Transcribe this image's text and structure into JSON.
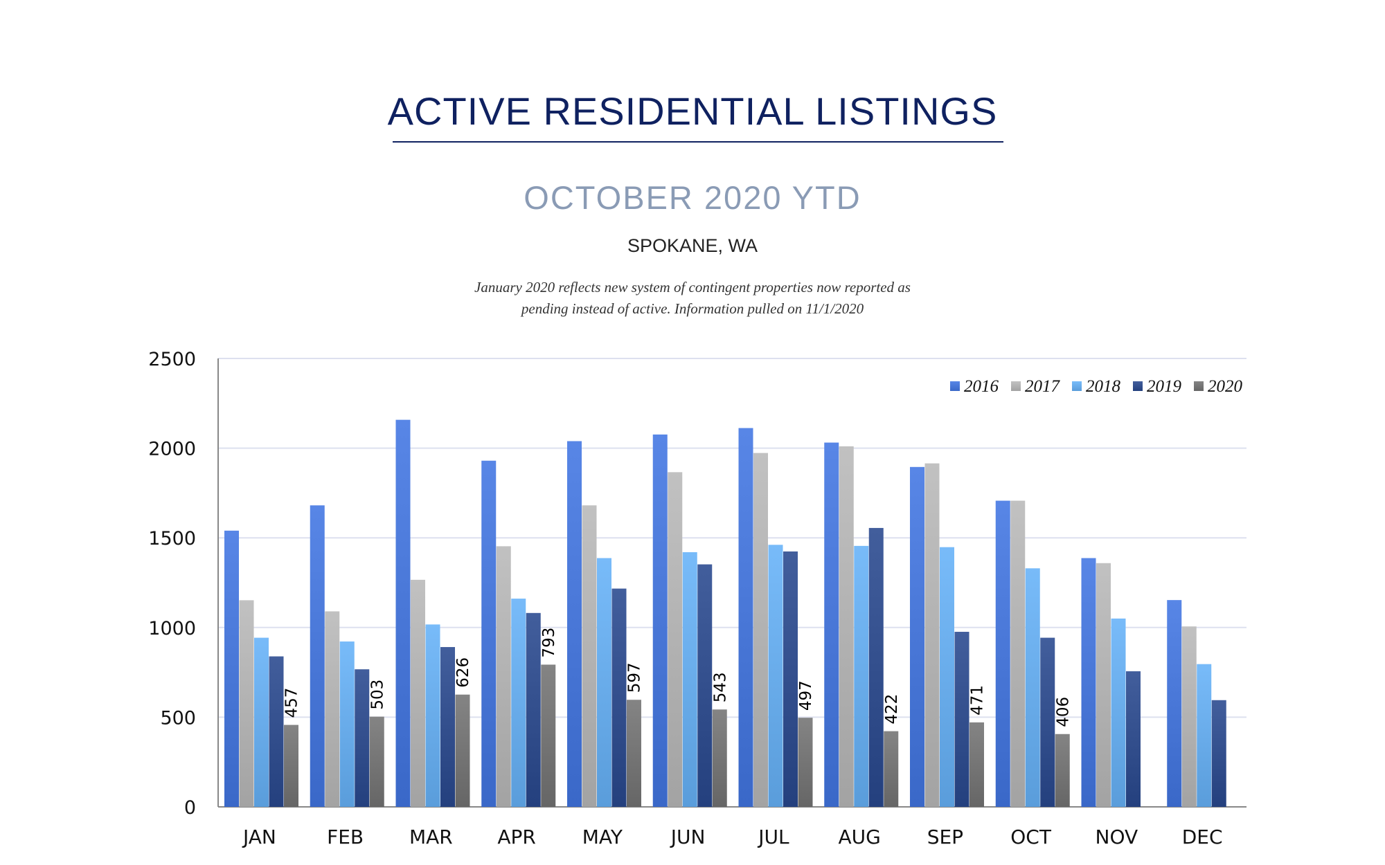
{
  "header": {
    "title": "ACTIVE RESIDENTIAL LISTINGS",
    "subtitle": "OCTOBER 2020 YTD",
    "location": "SPOKANE, WA",
    "note_line1": "January 2020 reflects new system of contingent properties now reported as",
    "note_line2": "pending instead of active.  Information pulled on 11/1/2020"
  },
  "chart_data": {
    "type": "bar",
    "categories": [
      "JAN",
      "FEB",
      "MAR",
      "APR",
      "MAY",
      "JUN",
      "JUL",
      "AUG",
      "SEP",
      "OCT",
      "NOV",
      "DEC"
    ],
    "ylim": [
      0,
      2500
    ],
    "yticks": [
      0,
      500,
      1000,
      1500,
      2000,
      2500
    ],
    "grid": true,
    "legend_position": "top-right",
    "series": [
      {
        "name": "2016",
        "color": "#3a68c8",
        "values": [
          1540,
          1681,
          2158,
          1930,
          2039,
          2076,
          2112,
          2031,
          1895,
          1707,
          1387,
          1153
        ]
      },
      {
        "name": "2017",
        "color": "#a3a3a3",
        "values": [
          1152,
          1090,
          1266,
          1453,
          1681,
          1866,
          1973,
          2010,
          1915,
          1707,
          1359,
          1006
        ]
      },
      {
        "name": "2018",
        "color": "#5a9ddb",
        "values": [
          943,
          922,
          1017,
          1161,
          1387,
          1420,
          1461,
          1455,
          1448,
          1330,
          1050,
          796
        ]
      },
      {
        "name": "2019",
        "color": "#24407e",
        "values": [
          839,
          767,
          891,
          1081,
          1217,
          1352,
          1424,
          1555,
          976,
          943,
          756,
          595
        ]
      },
      {
        "name": "2020",
        "color": "#666666",
        "values": [
          457,
          503,
          626,
          793,
          597,
          543,
          497,
          422,
          471,
          406,
          null,
          null
        ],
        "data_labels": true
      }
    ]
  }
}
